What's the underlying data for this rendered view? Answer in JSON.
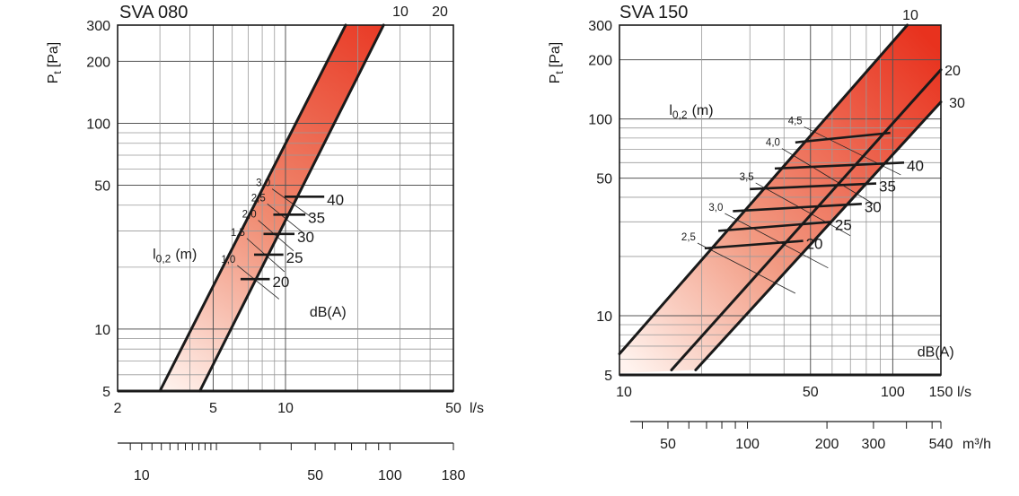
{
  "chart_data": [
    {
      "type": "line",
      "title": "SVA 080",
      "xlabel": "l/s",
      "ylabel": "Pt [Pa]",
      "ylabel_main": "P",
      "ylabel_sub": "t",
      "ylabel_unit": "[Pa]",
      "x_scale": "log",
      "y_scale": "log",
      "xlim": [
        2,
        50
      ],
      "ylim": [
        5,
        300
      ],
      "grid": true,
      "x_ticks": [
        2,
        5,
        10,
        50
      ],
      "x_tick_labels": [
        "2",
        "5",
        "10",
        "50"
      ],
      "y_ticks": [
        5,
        10,
        50,
        100,
        200,
        300
      ],
      "y_tick_labels": [
        "5",
        "10",
        "50",
        "100",
        "200",
        "300"
      ],
      "secondary_axis_label": "",
      "secondary_ticks": [
        10,
        50,
        100,
        180
      ],
      "secondary_tick_labels": [
        "10",
        "50",
        "100",
        "180"
      ],
      "series": [
        {
          "name": "10",
          "x": [
            3.0,
            17.8
          ],
          "y": [
            5,
            300
          ]
        },
        {
          "name": "20",
          "x": [
            4.4,
            25.6
          ],
          "y": [
            5,
            300
          ]
        }
      ],
      "sound_lines": [
        {
          "label": "20",
          "x": [
            6.5,
            8.6
          ],
          "y": [
            17.5,
            17.5
          ]
        },
        {
          "label": "25",
          "x": [
            7.4,
            9.8
          ],
          "y": [
            23,
            23
          ]
        },
        {
          "label": "30",
          "x": [
            8.1,
            10.9
          ],
          "y": [
            29,
            29
          ]
        },
        {
          "label": "35",
          "x": [
            8.9,
            12.1
          ],
          "y": [
            36,
            36
          ]
        },
        {
          "label": "40",
          "x": [
            9.9,
            14.5
          ],
          "y": [
            44,
            44
          ]
        }
      ],
      "throw_label_main": "l",
      "throw_label_sub": "0,2",
      "throw_label_unit": "(m)",
      "throw_labels": [
        "1,0",
        "1,5",
        "2,0",
        "2,5",
        "3,0"
      ],
      "curve_labels": [
        "10",
        "20"
      ],
      "sound_unit_label": "dB(A)"
    },
    {
      "type": "line",
      "title": "SVA 150",
      "xlabel": "l/s",
      "ylabel": "Pt [Pa]",
      "ylabel_main": "P",
      "ylabel_sub": "t",
      "ylabel_unit": "[Pa]",
      "x_scale": "log",
      "y_scale": "log",
      "xlim": [
        10,
        150
      ],
      "ylim": [
        5,
        300
      ],
      "grid": true,
      "x_ticks": [
        10,
        50,
        100,
        150
      ],
      "x_tick_labels": [
        "10",
        "50",
        "100",
        "150"
      ],
      "y_ticks": [
        5,
        10,
        50,
        100,
        200,
        300
      ],
      "y_tick_labels": [
        "5",
        "10",
        "50",
        "100",
        "200",
        "300"
      ],
      "secondary_axis_label": "m³/h",
      "secondary_ticks": [
        50,
        100,
        200,
        300,
        540
      ],
      "secondary_tick_labels": [
        "50",
        "100",
        "200",
        "300",
        "540"
      ],
      "series": [
        {
          "name": "10",
          "x": [
            10,
            113
          ],
          "y": [
            6.4,
            300
          ]
        },
        {
          "name": "20",
          "x": [
            15.5,
            150
          ],
          "y": [
            5.3,
            178
          ]
        },
        {
          "name": "30",
          "x": [
            19,
            150
          ],
          "y": [
            5.3,
            122
          ]
        }
      ],
      "sound_lines": [
        {
          "label": "20",
          "x": [
            20.5,
            47
          ],
          "y": [
            22,
            24
          ]
        },
        {
          "label": "25",
          "x": [
            23,
            60
          ],
          "y": [
            27,
            30
          ]
        },
        {
          "label": "30",
          "x": [
            26,
            77
          ],
          "y": [
            34,
            37
          ]
        },
        {
          "label": "35",
          "x": [
            30,
            87
          ],
          "y": [
            44,
            47
          ]
        },
        {
          "label": "40",
          "x": [
            37,
            110
          ],
          "y": [
            56,
            60
          ]
        },
        {
          "label": "",
          "x": [
            44,
            98
          ],
          "y": [
            76,
            85
          ]
        }
      ],
      "throw_label_main": "l",
      "throw_label_sub": "0,2",
      "throw_label_unit": "(m)",
      "throw_labels": [
        "2,5",
        "3,0",
        "3,5",
        "4,0",
        "4,5"
      ],
      "curve_labels": [
        "10",
        "20",
        "30"
      ],
      "sound_unit_label": "dB(A)"
    }
  ]
}
